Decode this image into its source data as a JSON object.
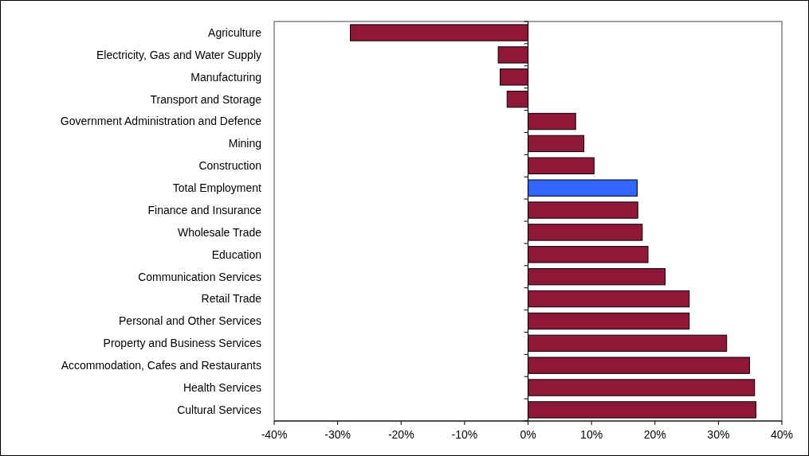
{
  "chart_data": {
    "type": "bar",
    "orientation": "horizontal",
    "categories": [
      "Agriculture",
      "Electricity, Gas and Water Supply",
      "Manufacturing",
      "Transport and Storage",
      "Government Administration and Defence",
      "Mining",
      "Construction",
      "Total Employment",
      "Finance and Insurance",
      "Wholesale Trade",
      "Education",
      "Communication Services",
      "Retail Trade",
      "Personal and Other Services",
      "Property and Business Services",
      "Accommodation, Cafes and Restaurants",
      "Health Services",
      "Cultural Services"
    ],
    "values": [
      -28,
      -4.7,
      -4.4,
      -3.3,
      7.5,
      8.8,
      10.4,
      17.2,
      17.3,
      18.0,
      18.9,
      21.6,
      25.4,
      25.4,
      31.3,
      34.9,
      35.7,
      35.9
    ],
    "colors": [
      "#8f1838",
      "#8f1838",
      "#8f1838",
      "#8f1838",
      "#8f1838",
      "#8f1838",
      "#8f1838",
      "#3366ff",
      "#8f1838",
      "#8f1838",
      "#8f1838",
      "#8f1838",
      "#8f1838",
      "#8f1838",
      "#8f1838",
      "#8f1838",
      "#8f1838",
      "#8f1838"
    ],
    "xlim": [
      -40,
      40
    ],
    "xticks": [
      {
        "value": -40,
        "label": "-40%"
      },
      {
        "value": -30,
        "label": "-30%"
      },
      {
        "value": -20,
        "label": "-20%"
      },
      {
        "value": -10,
        "label": "-10%"
      },
      {
        "value": 0,
        "label": "0%"
      },
      {
        "value": 10,
        "label": "10%"
      },
      {
        "value": 20,
        "label": "20%"
      },
      {
        "value": 30,
        "label": "30%"
      },
      {
        "value": 40,
        "label": "40%"
      }
    ]
  }
}
